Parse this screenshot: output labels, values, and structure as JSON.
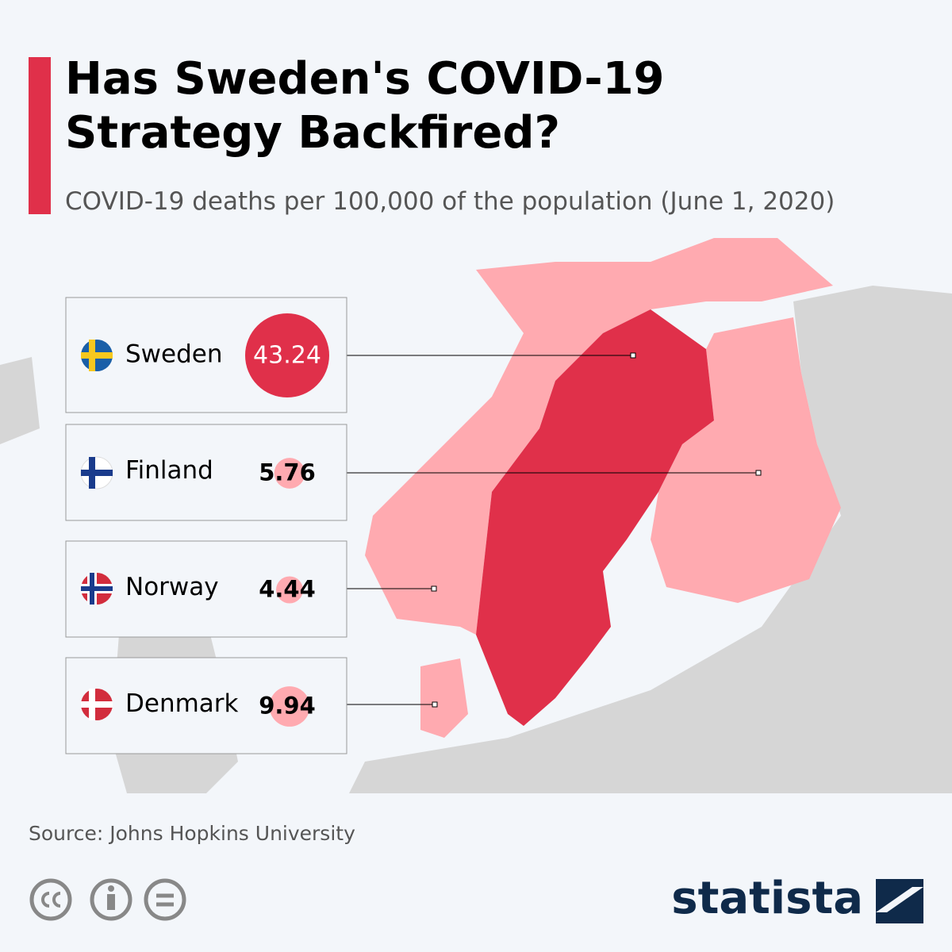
{
  "chart_data": {
    "type": "bubble",
    "title": "Has Sweden's COVID-19 Strategy Backfired?",
    "subtitle": "COVID-19 deaths per 100,000 of the population (June 1, 2020)",
    "categories": [
      "Sweden",
      "Finland",
      "Norway",
      "Denmark"
    ],
    "values": [
      43.24,
      5.76,
      4.44,
      9.94
    ],
    "colors": [
      "#e0304a",
      "#ffaab0",
      "#ffaab0",
      "#ffaab0"
    ],
    "source": "Source: Johns Hopkins University",
    "brand": "statista"
  }
}
